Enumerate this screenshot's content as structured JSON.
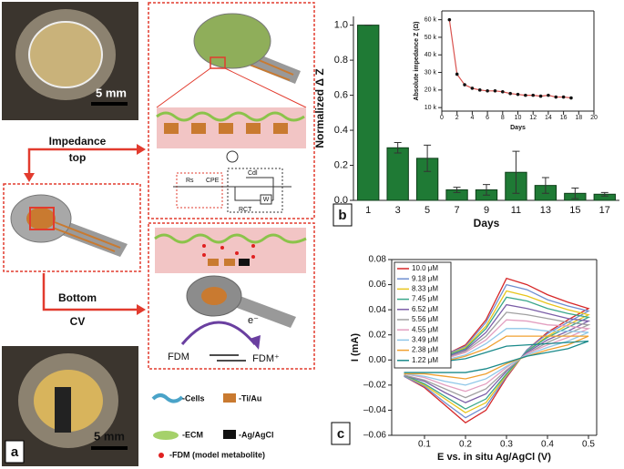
{
  "panel_a": {
    "label": "a",
    "scale_top": "5 mm",
    "scale_bottom": "5 mm",
    "impedance": "Impedance",
    "top": "top",
    "bottom": "Bottom",
    "cv": "CV",
    "circuit": {
      "rs": "Rs",
      "cpe": "CPE",
      "cdl": "Cdl",
      "rct": "RCT",
      "w": "W"
    },
    "fdm": "FDM",
    "fdm_plus": "FDM⁺",
    "electron": "e⁻",
    "legend": [
      "-Cells",
      "-Ti/Au",
      "-ECM",
      "-Ag/AgCl",
      "-FDM (model metabolite)"
    ]
  },
  "panel_labels": {
    "b": "b",
    "c": "c"
  },
  "chart_data": [
    {
      "type": "bar",
      "ylabel": "Normalized Δ Z",
      "xlabel": "Days",
      "categories": [
        "1",
        "3",
        "5",
        "7",
        "9",
        "11",
        "13",
        "15",
        "17"
      ],
      "values": [
        1.0,
        0.3,
        0.24,
        0.06,
        0.06,
        0.16,
        0.085,
        0.04,
        0.035
      ],
      "errors": [
        0,
        0.03,
        0.075,
        0.015,
        0.03,
        0.12,
        0.045,
        0.03,
        0.01
      ],
      "color": "#1f7a35",
      "ylim": [
        0,
        1.05
      ],
      "yticks": [
        {
          "value": 0,
          "label": "0.0"
        },
        {
          "value": 0.2,
          "label": "0.2"
        },
        {
          "value": 0.4,
          "label": "0.4"
        },
        {
          "value": 0.6,
          "label": "0.6"
        },
        {
          "value": 0.8,
          "label": "0.8"
        },
        {
          "value": 1.0,
          "label": "1.0"
        }
      ]
    },
    {
      "type": "line",
      "ylabel": "Absolute impedance Z (Ω)",
      "xlabel": "Days",
      "x": [
        1,
        2,
        3,
        4,
        5,
        6,
        7,
        8,
        9,
        10,
        11,
        12,
        13,
        14,
        15,
        16,
        17
      ],
      "values": [
        60000,
        29000,
        23000,
        21000,
        20000,
        19500,
        19500,
        19000,
        18000,
        17500,
        17000,
        17000,
        16500,
        17000,
        16000,
        16000,
        15500
      ],
      "color": "#d9534f",
      "marker_color": "#111111",
      "xlim": [
        0,
        20
      ],
      "xticks": [
        0,
        2,
        4,
        6,
        8,
        10,
        12,
        14,
        16,
        18,
        20
      ],
      "ylim": [
        8000,
        65000
      ],
      "yticks": [
        {
          "value": 10000,
          "label": "10 k"
        },
        {
          "value": 20000,
          "label": "20 k"
        },
        {
          "value": 30000,
          "label": "30 k"
        },
        {
          "value": 40000,
          "label": "40 k"
        },
        {
          "value": 50000,
          "label": "50 k"
        },
        {
          "value": 60000,
          "label": "60 k"
        }
      ]
    },
    {
      "type": "line",
      "ylabel": "I (mA)",
      "xlabel": "E vs. in situ Ag/AgCl (V)",
      "x": [
        0.05,
        0.1,
        0.15,
        0.2,
        0.25,
        0.3,
        0.35,
        0.4,
        0.45,
        0.5,
        0.45,
        0.4,
        0.35,
        0.3,
        0.25,
        0.2,
        0.15,
        0.1,
        0.05
      ],
      "series": [
        {
          "name": "10.0 μM",
          "color": "#d62728",
          "values": [
            -0.003,
            0.0,
            0.004,
            0.012,
            0.032,
            0.065,
            0.06,
            0.052,
            0.046,
            0.041,
            0.032,
            0.022,
            0.008,
            -0.014,
            -0.04,
            -0.05,
            -0.036,
            -0.022,
            -0.013
          ]
        },
        {
          "name": "9.18 μM",
          "color": "#6f8fd0",
          "values": [
            -0.003,
            0.0,
            0.004,
            0.011,
            0.03,
            0.06,
            0.056,
            0.048,
            0.043,
            0.039,
            0.03,
            0.021,
            0.008,
            -0.013,
            -0.037,
            -0.046,
            -0.034,
            -0.021,
            -0.013
          ]
        },
        {
          "name": "8.33 μM",
          "color": "#e8c51c",
          "values": [
            -0.003,
            -0.001,
            0.003,
            0.01,
            0.027,
            0.055,
            0.051,
            0.045,
            0.04,
            0.036,
            0.028,
            0.019,
            0.007,
            -0.012,
            -0.034,
            -0.042,
            -0.031,
            -0.02,
            -0.012
          ]
        },
        {
          "name": "7.45 μM",
          "color": "#3aa68a",
          "values": [
            -0.004,
            -0.001,
            0.003,
            0.009,
            0.025,
            0.05,
            0.047,
            0.041,
            0.037,
            0.034,
            0.026,
            0.018,
            0.007,
            -0.011,
            -0.031,
            -0.039,
            -0.029,
            -0.019,
            -0.012
          ]
        },
        {
          "name": "6.52 μM",
          "color": "#7b5ea7",
          "values": [
            -0.004,
            -0.001,
            0.002,
            0.008,
            0.022,
            0.044,
            0.041,
            0.037,
            0.033,
            0.031,
            0.023,
            0.016,
            0.006,
            -0.009,
            -0.027,
            -0.034,
            -0.026,
            -0.017,
            -0.012
          ]
        },
        {
          "name": "5.56 μM",
          "color": "#a0a0a0",
          "values": [
            -0.004,
            -0.001,
            0.001,
            0.007,
            0.019,
            0.038,
            0.036,
            0.033,
            0.03,
            0.028,
            0.021,
            0.014,
            0.005,
            -0.008,
            -0.023,
            -0.03,
            -0.023,
            -0.016,
            -0.012
          ]
        },
        {
          "name": "4.55 μM",
          "color": "#e39fc0",
          "values": [
            -0.004,
            -0.002,
            0.001,
            0.006,
            0.016,
            0.032,
            0.031,
            0.028,
            0.027,
            0.025,
            0.018,
            0.012,
            0.005,
            -0.006,
            -0.019,
            -0.025,
            -0.02,
            -0.014,
            -0.011
          ]
        },
        {
          "name": "3.49 μM",
          "color": "#8fc7e8",
          "values": [
            -0.004,
            -0.002,
            0.0,
            0.004,
            0.013,
            0.025,
            0.025,
            0.023,
            0.023,
            0.022,
            0.015,
            0.01,
            0.004,
            -0.005,
            -0.015,
            -0.02,
            -0.017,
            -0.013,
            -0.011
          ]
        },
        {
          "name": "2.38 μM",
          "color": "#f0a030",
          "values": [
            -0.005,
            -0.002,
            -0.001,
            0.003,
            0.009,
            0.019,
            0.019,
            0.019,
            0.019,
            0.019,
            0.012,
            0.008,
            0.003,
            -0.003,
            -0.011,
            -0.015,
            -0.013,
            -0.011,
            -0.011
          ]
        },
        {
          "name": "1.22 μM",
          "color": "#1a8a8a",
          "values": [
            -0.005,
            -0.003,
            -0.001,
            0.001,
            0.006,
            0.011,
            0.012,
            0.013,
            0.014,
            0.015,
            0.009,
            0.006,
            0.003,
            -0.002,
            -0.007,
            -0.01,
            -0.01,
            -0.01,
            -0.01
          ]
        }
      ],
      "xlim": [
        0.02,
        0.52
      ],
      "xticks": [
        0.1,
        0.2,
        0.3,
        0.4,
        0.5
      ],
      "ylim": [
        -0.06,
        0.08
      ],
      "yticks": [
        {
          "value": -0.06,
          "label": "–0.06"
        },
        {
          "value": -0.04,
          "label": "–0.04"
        },
        {
          "value": -0.02,
          "label": "–0.02"
        },
        {
          "value": 0,
          "label": "0.00"
        },
        {
          "value": 0.02,
          "label": "0.02"
        },
        {
          "value": 0.04,
          "label": "0.04"
        },
        {
          "value": 0.06,
          "label": "0.06"
        },
        {
          "value": 0.08,
          "label": "0.08"
        }
      ]
    }
  ]
}
